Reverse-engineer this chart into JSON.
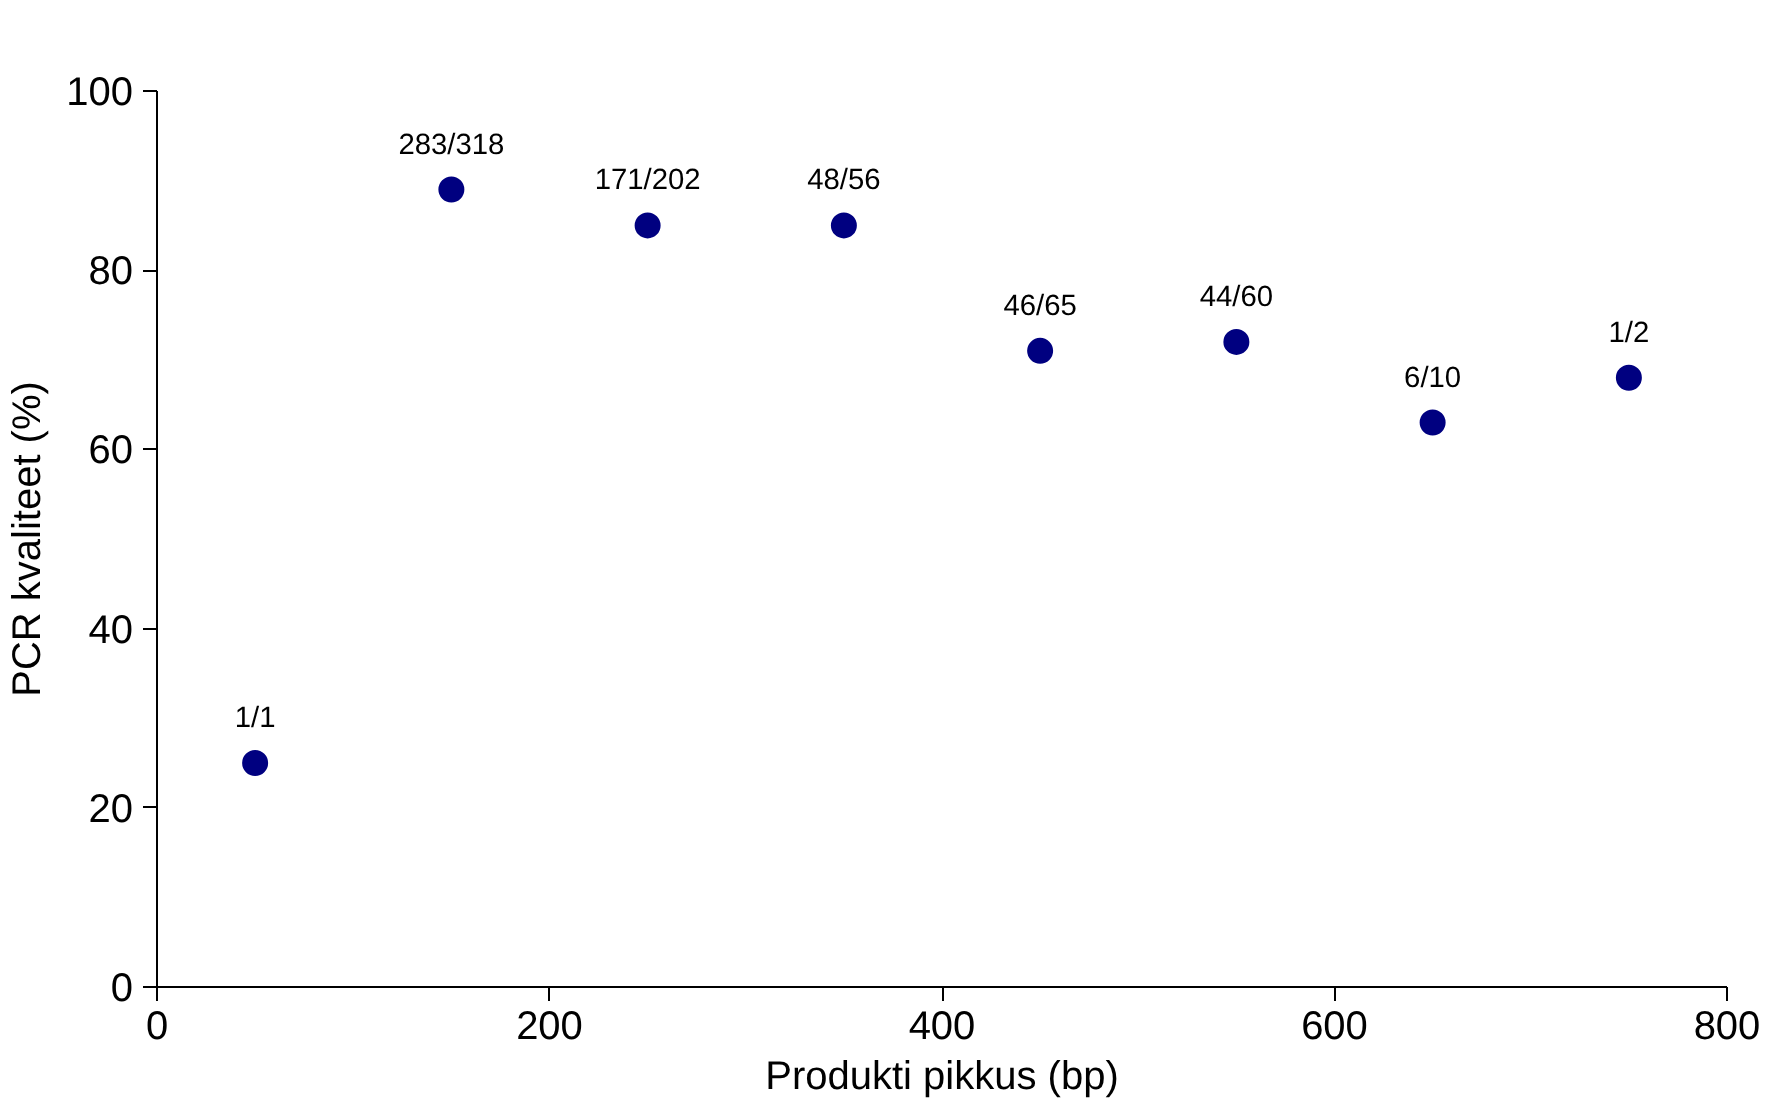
{
  "chart_data": {
    "type": "scatter",
    "xlabel": "Produkti pikkus (bp)",
    "ylabel": "PCR kvaliteet (%)",
    "x": [
      50,
      150,
      250,
      350,
      450,
      550,
      650,
      750
    ],
    "series": [
      {
        "color": "#000080",
        "values": [
          25,
          89,
          85,
          85,
          71,
          72,
          63,
          68
        ]
      }
    ],
    "xlim": [
      0,
      800
    ],
    "ylim": [
      0,
      100
    ],
    "xticks": [
      0,
      200,
      400,
      600,
      800
    ],
    "yticks": [
      0,
      20,
      40,
      60,
      80,
      100
    ],
    "marker": "circle",
    "annotations": [
      {
        "text": "1/1",
        "x": 50,
        "y": 25
      },
      {
        "text": "283/318",
        "x": 150,
        "y": 89
      },
      {
        "text": "171/202",
        "x": 250,
        "y": 85
      },
      {
        "text": "48/56",
        "x": 350,
        "y": 85
      },
      {
        "text": "46/65",
        "x": 450,
        "y": 71
      },
      {
        "text": "44/60",
        "x": 550,
        "y": 72
      },
      {
        "text": "6/10",
        "x": 650,
        "y": 63
      },
      {
        "text": "1/2",
        "x": 750,
        "y": 68
      }
    ]
  }
}
